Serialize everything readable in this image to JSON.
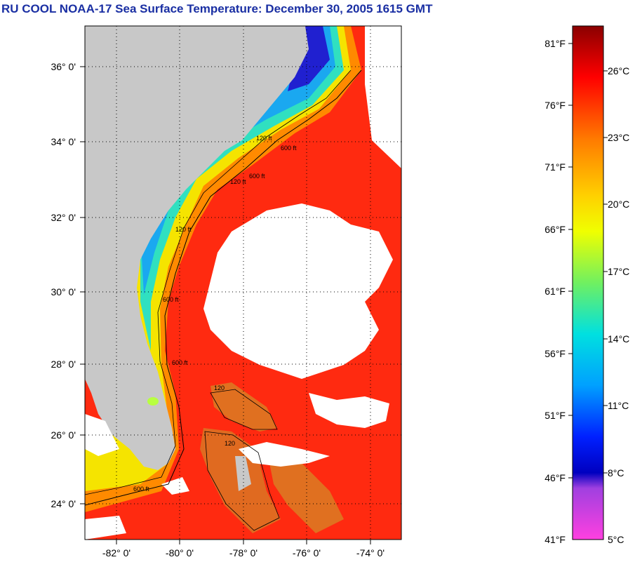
{
  "title": "RU COOL  NOAA-17  Sea Surface Temperature:  December 30, 2005 1615 GMT",
  "map": {
    "lon_labels": [
      "-82° 0'",
      "-80° 0'",
      "-78° 0'",
      "-76° 0'",
      "-74° 0'"
    ],
    "lat_labels": [
      "36° 0'",
      "34° 0'",
      "32° 0'",
      "30° 0'",
      "28° 0'",
      "26° 0'",
      "24° 0'"
    ],
    "contour_labels": [
      "120 ft",
      "600 ft",
      "120 ft",
      "600 ft",
      "120 ft",
      "600 ft",
      "120",
      "600 ft",
      "120",
      "600 ft"
    ],
    "colors": {
      "land": "#c8c8c8",
      "cloud": "#ffffff",
      "grid": "#000000"
    }
  },
  "colorbar": {
    "fahrenheit_labels": [
      "81°F",
      "76°F",
      "71°F",
      "66°F",
      "61°F",
      "56°F",
      "51°F",
      "46°F",
      "41°F"
    ],
    "celsius_labels": [
      "26°C",
      "23°C",
      "20°C",
      "17°C",
      "14°C",
      "11°C",
      "8°C",
      "5°C"
    ],
    "gradient_colors": [
      "#8a0000",
      "#ff0000",
      "#ff7a00",
      "#ffd000",
      "#f0ff00",
      "#70f060",
      "#00e0e0",
      "#00a0ff",
      "#0020ff",
      "#0000c0",
      "#a040e0",
      "#ff40e0"
    ]
  }
}
